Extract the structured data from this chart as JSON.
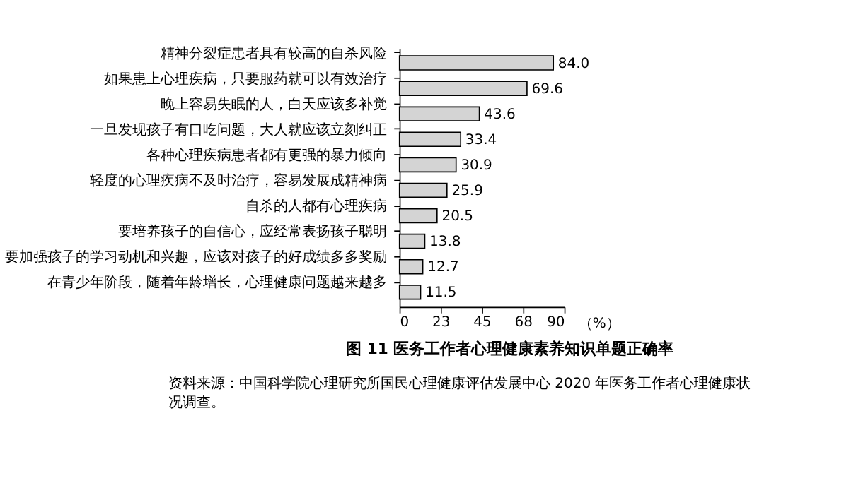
{
  "chart_data": {
    "type": "bar",
    "orientation": "horizontal",
    "title": "图 11    医务工作者心理健康素养知识单题正确率",
    "categories": [
      "精神分裂症患者具有较高的自杀风险",
      "如果患上心理疾病，只要服药就可以有效治疗",
      "晚上容易失眠的人，白天应该多补觉",
      "一旦发现孩子有口吃问题，大人就应该立刻纠正",
      "各种心理疾病患者都有更强的暴力倾向",
      "轻度的心理疾病不及时治疗，容易发展成精神病",
      "自杀的人都有心理疾病",
      "要培养孩子的自信心，应经常表扬孩子聪明",
      "要加强孩子的学习动机和兴趣，应该对孩子的好成绩多多奖励",
      "在青少年阶段，随着年龄增长，心理健康问题越来越多"
    ],
    "values": [
      84.0,
      69.6,
      43.6,
      33.4,
      30.9,
      25.9,
      20.5,
      13.8,
      12.7,
      11.5
    ],
    "value_labels": [
      "84.0",
      "69.6",
      "43.6",
      "33.4",
      "30.9",
      "25.9",
      "20.5",
      "13.8",
      "12.7",
      "11.5"
    ],
    "color": "#d4d4d4",
    "xlabel": "（%）",
    "xlim": [
      0,
      90
    ],
    "xticks": [
      0,
      {
        "value": 22.5,
        "label": "23"
      },
      45,
      {
        "value": 67.5,
        "label": "68"
      },
      90
    ],
    "grid": false,
    "annotations": [
      "资料来源：中国科学院心理研究所国民心理健康评估发展中心 2020 年医务工作者心理健康状况调查。"
    ]
  }
}
